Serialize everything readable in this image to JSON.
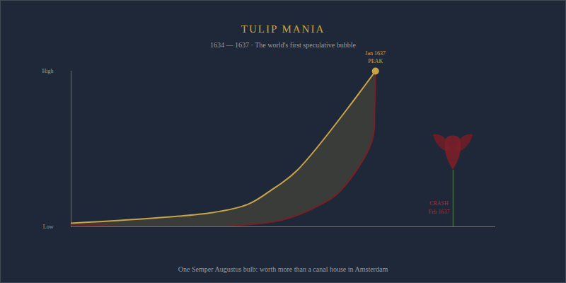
{
  "chart_data": {
    "type": "line",
    "title": "TULIP MANIA",
    "subtitle": "1634 — 1637 · The world's first speculative bubble",
    "caption": "One Semper Augustus bulb: worth more than a canal house in Amsterdam",
    "xlim": [
      0,
      100
    ],
    "ylim": [
      0,
      100
    ],
    "yticks": [
      {
        "value": 0,
        "label": "Low"
      },
      {
        "value": 100,
        "label": "High"
      }
    ],
    "tick_labels": "y",
    "grid": false,
    "series": [
      {
        "color": "#c9a54a",
        "x": [
          0,
          33.3,
          41.7,
          46.7,
          53.3,
          71.7
        ],
        "values": [
          2.3,
          9.1,
          14.5,
          22.7,
          36.4,
          100
        ]
      },
      {
        "color": "#7a1f24",
        "x": [
          0,
          16.7,
          26.7,
          33.3,
          41.7,
          50,
          58.3,
          63.3,
          70.8,
          71.5,
          71.7
        ],
        "values": [
          1.4,
          0,
          0,
          0,
          1.4,
          4.5,
          13.6,
          22.7,
          54.5,
          77,
          100
        ]
      }
    ],
    "annotations": [
      {
        "x": 71.7,
        "y": 100,
        "label": "PEAK",
        "date": "Jan 1637"
      },
      {
        "x": 90,
        "y": 36.4,
        "label": "CRASH",
        "date": "Feb 1637"
      }
    ]
  }
}
